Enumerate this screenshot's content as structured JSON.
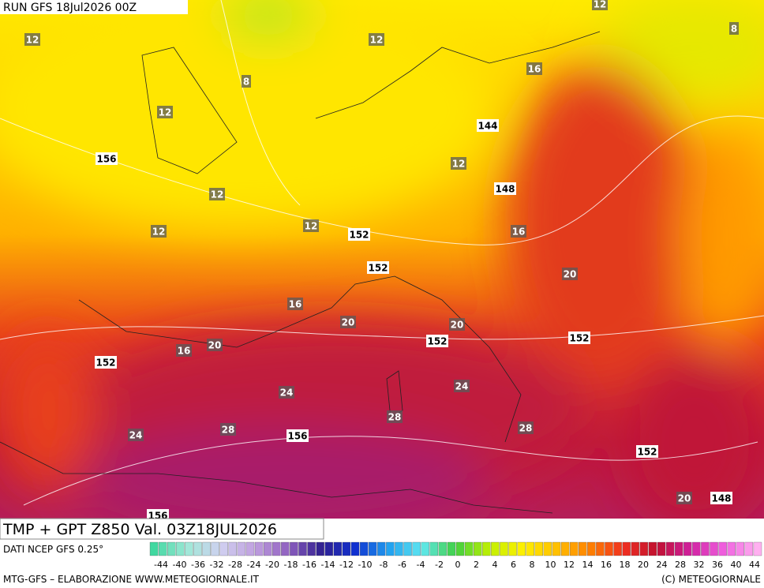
{
  "header": {
    "run": "RUN GFS 18Jul2026 00Z"
  },
  "map": {
    "labels": [
      {
        "kind": "temperature",
        "text": "12"
      },
      {
        "kind": "temperature",
        "text": "12"
      },
      {
        "kind": "temperature",
        "text": "8"
      },
      {
        "kind": "temperature",
        "text": "12"
      },
      {
        "kind": "temperature",
        "text": "16"
      },
      {
        "kind": "temperature",
        "text": "8"
      },
      {
        "kind": "temperature",
        "text": "12"
      },
      {
        "kind": "temperature",
        "text": "12"
      },
      {
        "kind": "temperature",
        "text": "12"
      },
      {
        "kind": "temperature",
        "text": "12"
      },
      {
        "kind": "temperature",
        "text": "12"
      },
      {
        "kind": "temperature",
        "text": "16"
      },
      {
        "kind": "temperature",
        "text": "20"
      },
      {
        "kind": "temperature",
        "text": "16"
      },
      {
        "kind": "temperature",
        "text": "20"
      },
      {
        "kind": "temperature",
        "text": "20"
      },
      {
        "kind": "temperature",
        "text": "16"
      },
      {
        "kind": "temperature",
        "text": "20"
      },
      {
        "kind": "temperature",
        "text": "24"
      },
      {
        "kind": "temperature",
        "text": "24"
      },
      {
        "kind": "temperature",
        "text": "28"
      },
      {
        "kind": "temperature",
        "text": "28"
      },
      {
        "kind": "temperature",
        "text": "28"
      },
      {
        "kind": "temperature",
        "text": "24"
      },
      {
        "kind": "temperature",
        "text": "20"
      },
      {
        "kind": "geopotential",
        "text": "144"
      },
      {
        "kind": "geopotential",
        "text": "156"
      },
      {
        "kind": "geopotential",
        "text": "148"
      },
      {
        "kind": "geopotential",
        "text": "152"
      },
      {
        "kind": "geopotential",
        "text": "152"
      },
      {
        "kind": "geopotential",
        "text": "152"
      },
      {
        "kind": "geopotential",
        "text": "152"
      },
      {
        "kind": "geopotential",
        "text": "152"
      },
      {
        "kind": "geopotential",
        "text": "156"
      },
      {
        "kind": "geopotential",
        "text": "152"
      },
      {
        "kind": "geopotential",
        "text": "148"
      },
      {
        "kind": "geopotential",
        "text": "156"
      }
    ]
  },
  "footer": {
    "product": "TMP + GPT Z850 Val. 03Z18JUL2026",
    "source": "DATI NCEP GFS 0.25°",
    "scale": [
      -44,
      -40,
      -36,
      -32,
      -28,
      -24,
      -20,
      -18,
      -16,
      -14,
      -12,
      -10,
      -8,
      -6,
      -4,
      -2,
      0,
      2,
      4,
      6,
      8,
      10,
      12,
      14,
      16,
      18,
      20,
      24,
      28,
      32,
      36,
      40,
      44
    ],
    "credit": "MTG-GFS – ELABORAZIONE WWW.METEOGIORNALE.IT",
    "copyright": "(C) METEOGIORNALE"
  }
}
